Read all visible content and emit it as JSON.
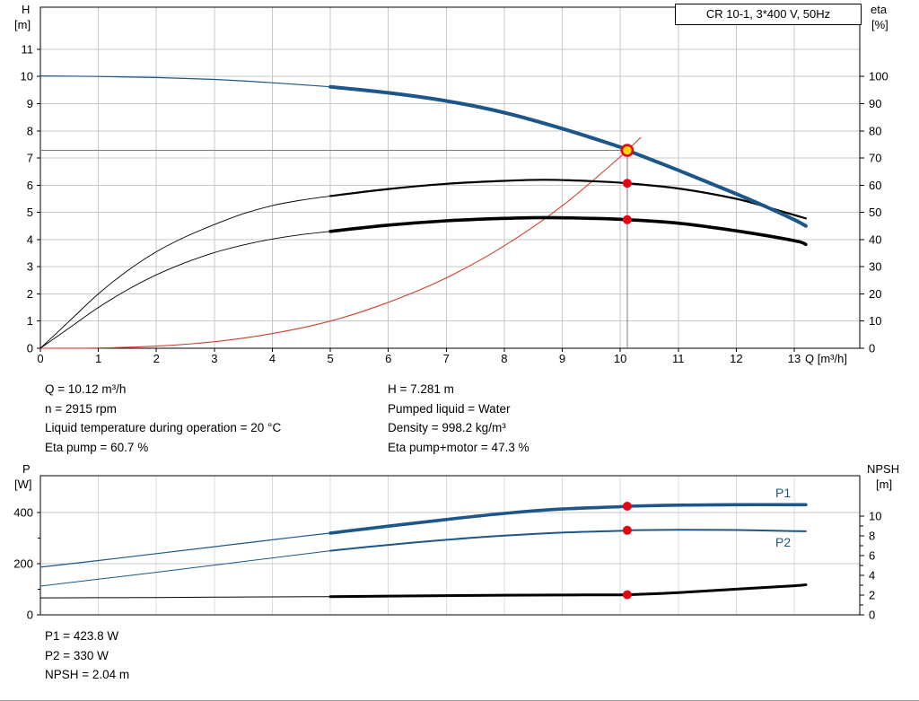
{
  "top_chart": {
    "y_left_name": "H",
    "y_left_unit": "[m]",
    "y_right_name": "eta",
    "y_right_unit": "[%]",
    "x_name": "Q [m³/h]"
  },
  "bottom_chart": {
    "y_left_name": "P",
    "y_left_unit": "[W]",
    "y_right_name": "NPSH",
    "y_right_unit": "[m]",
    "p1_label": "P1",
    "p2_label": "P2"
  },
  "info_top_left": [
    "Q = 10.12 m³/h",
    "n = 2915 rpm",
    "Liquid temperature during operation = 20 °C",
    "Eta pump = 60.7 %"
  ],
  "info_top_right": [
    "H = 7.281 m",
    "Pumped liquid = Water",
    "Density = 998.2 kg/m³",
    "Eta pump+motor = 47.3 %"
  ],
  "info_bottom": [
    "P1 = 423.8 W",
    "P2 = 330 W",
    "NPSH = 2.04 m"
  ],
  "colors": {
    "curve_blue": "#1d5689",
    "curve_black": "#000000",
    "curve_red": "#d23f2e",
    "dot_red": "#e30613",
    "duty_marker_fill": "#ffd500",
    "duty_marker_ring": "#e30613",
    "grid": "#c8c8c8",
    "grid_light": "#dcdcdc",
    "duty_line": "#7d7d7d",
    "axis": "#000000"
  },
  "chart_data": [
    {
      "id": "qh-eta-chart",
      "type": "line",
      "title": "CR 10-1, 3*400 V, 50Hz",
      "xlabel": "Q [m³/h]",
      "x_range": [
        0,
        14.13
      ],
      "x_ticks": [
        0,
        1,
        2,
        3,
        4,
        5,
        6,
        7,
        8,
        9,
        10,
        11,
        12,
        13
      ],
      "left_axis": {
        "label": "H [m]",
        "range": [
          0,
          12.55
        ],
        "ticks": [
          0,
          1,
          2,
          3,
          4,
          5,
          6,
          7,
          8,
          9,
          10,
          11
        ]
      },
      "right_axis": {
        "label": "eta [%]",
        "range": [
          0,
          125.5
        ],
        "ticks": [
          0,
          10,
          20,
          30,
          40,
          50,
          60,
          70,
          80,
          90,
          100
        ]
      },
      "grid": true,
      "duty_point": {
        "q": 10.12,
        "h": 7.281,
        "eta_pump": 60.7,
        "eta_pump_motor": 47.3
      },
      "series": [
        {
          "name": "system-curve",
          "axis": "left",
          "color": "#d23f2e",
          "split_q": null,
          "w_thin": 1.1,
          "w_thick": 1.1,
          "points": [
            [
              0,
              0
            ],
            [
              1,
              0.01
            ],
            [
              2,
              0.08
            ],
            [
              3,
              0.24
            ],
            [
              4,
              0.54
            ],
            [
              5,
              1.0
            ],
            [
              6,
              1.69
            ],
            [
              7,
              2.59
            ],
            [
              8,
              3.77
            ],
            [
              9,
              5.24
            ],
            [
              10,
              7.04
            ],
            [
              10.12,
              7.281
            ],
            [
              10.35,
              7.75
            ]
          ]
        },
        {
          "name": "eta-pump",
          "axis": "right",
          "color": "#000000",
          "split_q": 5,
          "w_thin": 0.9,
          "w_thick": 2.2,
          "points": [
            [
              0,
              0
            ],
            [
              0.5,
              10
            ],
            [
              1,
              20
            ],
            [
              1.5,
              28.5
            ],
            [
              2,
              35.5
            ],
            [
              2.5,
              41
            ],
            [
              3,
              45.5
            ],
            [
              3.5,
              49.5
            ],
            [
              4,
              52.5
            ],
            [
              4.5,
              54.5
            ],
            [
              5,
              56
            ],
            [
              6,
              58.6
            ],
            [
              7,
              60.5
            ],
            [
              8,
              61.6
            ],
            [
              8.7,
              62
            ],
            [
              9.5,
              61.5
            ],
            [
              10.12,
              60.7
            ],
            [
              11,
              58.8
            ],
            [
              12,
              55
            ],
            [
              12.6,
              51.5
            ],
            [
              13,
              49
            ],
            [
              13.2,
              47.8
            ]
          ]
        },
        {
          "name": "eta-pump-motor",
          "axis": "right",
          "color": "#000000",
          "split_q": 5,
          "w_thin": 0.9,
          "w_thick": 3.6,
          "points": [
            [
              0,
              0
            ],
            [
              0.5,
              7.5
            ],
            [
              1,
              15
            ],
            [
              1.5,
              21.5
            ],
            [
              2,
              27
            ],
            [
              2.5,
              31.5
            ],
            [
              3,
              35.2
            ],
            [
              3.5,
              38
            ],
            [
              4,
              40.2
            ],
            [
              4.5,
              41.8
            ],
            [
              5,
              43
            ],
            [
              6,
              45.3
            ],
            [
              7,
              46.9
            ],
            [
              8,
              47.8
            ],
            [
              8.7,
              48.1
            ],
            [
              9.5,
              47.8
            ],
            [
              10.12,
              47.3
            ],
            [
              11,
              46
            ],
            [
              12,
              43.2
            ],
            [
              13,
              39.6
            ],
            [
              13.2,
              38.2
            ]
          ]
        },
        {
          "name": "head",
          "axis": "left",
          "color": "#1d5689",
          "split_q": 5,
          "w_thin": 1.2,
          "w_thick": 4,
          "points": [
            [
              0,
              10.02
            ],
            [
              1,
              10.0
            ],
            [
              2,
              9.96
            ],
            [
              3,
              9.89
            ],
            [
              4,
              9.77
            ],
            [
              5,
              9.62
            ],
            [
              6,
              9.4
            ],
            [
              7,
              9.1
            ],
            [
              8,
              8.67
            ],
            [
              9,
              8.08
            ],
            [
              10,
              7.4
            ],
            [
              10.12,
              7.281
            ],
            [
              11,
              6.55
            ],
            [
              12,
              5.68
            ],
            [
              12.5,
              5.22
            ],
            [
              13,
              4.73
            ],
            [
              13.2,
              4.5
            ]
          ]
        }
      ]
    },
    {
      "id": "power-npsh-chart",
      "type": "line",
      "title": "",
      "x_range": [
        0,
        14.13
      ],
      "x_ticks": [
        0,
        1,
        2,
        3,
        4,
        5,
        6,
        7,
        8,
        9,
        10,
        11,
        12,
        13
      ],
      "left_axis": {
        "label": "P [W]",
        "range": [
          0,
          543
        ],
        "ticks": [
          0,
          200,
          400
        ],
        "minor_ticks": [
          100,
          300
        ]
      },
      "right_axis": {
        "label": "NPSH [m]",
        "range": [
          0,
          14.1
        ],
        "ticks": [
          0,
          2,
          4,
          6,
          8,
          10
        ],
        "minor_ticks": [
          1,
          3,
          5,
          7,
          9
        ]
      },
      "grid": true,
      "duty_markers": [
        {
          "name": "P1",
          "q": 10.12,
          "value": 423.8,
          "axis": "left"
        },
        {
          "name": "P2",
          "q": 10.12,
          "value": 330,
          "axis": "left"
        },
        {
          "name": "NPSH",
          "q": 10.12,
          "value": 2.04,
          "axis": "right"
        }
      ],
      "series": [
        {
          "name": "P1",
          "axis": "left",
          "color": "#1d5689",
          "split_q": 5,
          "w_thin": 1.2,
          "w_thick": 3.6,
          "points": [
            [
              0,
              186
            ],
            [
              1,
              212
            ],
            [
              2,
              239
            ],
            [
              3,
              266
            ],
            [
              4,
              293
            ],
            [
              5,
              319
            ],
            [
              6,
              346
            ],
            [
              7,
              372
            ],
            [
              8,
              396
            ],
            [
              9,
              413
            ],
            [
              10,
              422
            ],
            [
              10.12,
              423.8
            ],
            [
              11,
              428
            ],
            [
              12,
              430
            ],
            [
              13,
              430
            ],
            [
              13.2,
              430
            ]
          ]
        },
        {
          "name": "P2",
          "axis": "left",
          "color": "#1d5689",
          "split_q": 5,
          "w_thin": 1,
          "w_thick": 2,
          "points": [
            [
              0,
              112
            ],
            [
              1,
              139
            ],
            [
              2,
              166
            ],
            [
              3,
              194
            ],
            [
              4,
              222
            ],
            [
              5,
              250
            ],
            [
              6,
              273
            ],
            [
              7,
              293
            ],
            [
              8,
              309
            ],
            [
              9,
              321
            ],
            [
              10,
              328
            ],
            [
              10.12,
              330
            ],
            [
              11,
              332
            ],
            [
              12,
              331
            ],
            [
              13,
              327
            ],
            [
              13.2,
              326
            ]
          ]
        },
        {
          "name": "NPSH",
          "axis": "right",
          "color": "#000000",
          "split_q": 5,
          "w_thin": 1,
          "w_thick": 3,
          "points": [
            [
              0,
              1.72
            ],
            [
              1,
              1.74
            ],
            [
              2,
              1.76
            ],
            [
              3,
              1.79
            ],
            [
              4,
              1.82
            ],
            [
              5,
              1.85
            ],
            [
              6,
              1.9
            ],
            [
              7,
              1.95
            ],
            [
              8,
              1.99
            ],
            [
              9,
              2.01
            ],
            [
              10,
              2.03
            ],
            [
              10.12,
              2.04
            ],
            [
              11,
              2.25
            ],
            [
              12,
              2.6
            ],
            [
              13,
              2.95
            ],
            [
              13.2,
              3.05
            ]
          ]
        }
      ]
    }
  ]
}
